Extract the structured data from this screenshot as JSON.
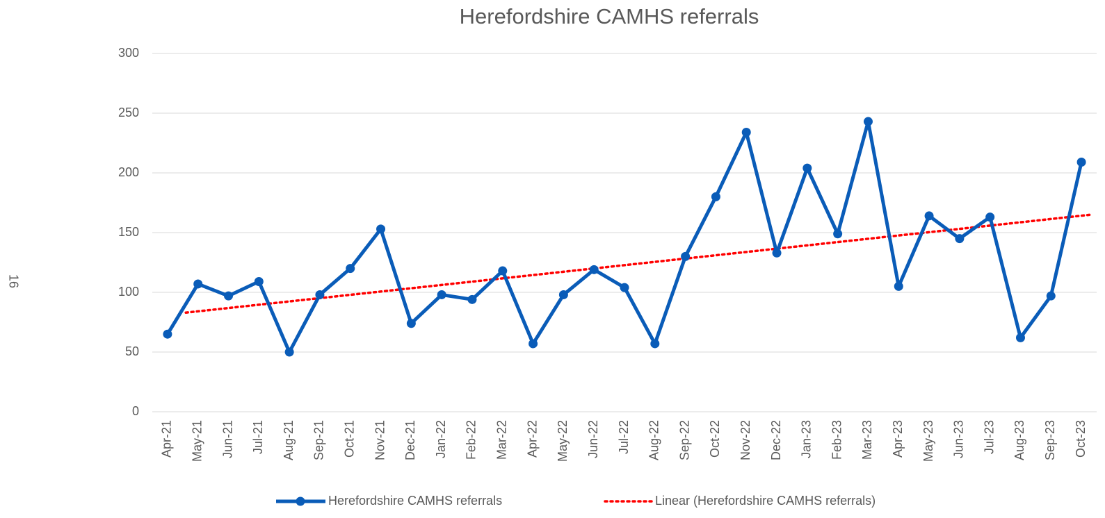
{
  "page_number": "16",
  "chart_data": {
    "type": "line",
    "title": "Herefordshire CAMHS referrals",
    "categories": [
      "Apr-21",
      "May-21",
      "Jun-21",
      "Jul-21",
      "Aug-21",
      "Sep-21",
      "Oct-21",
      "Nov-21",
      "Dec-21",
      "Jan-22",
      "Feb-22",
      "Mar-22",
      "Apr-22",
      "May-22",
      "Jun-22",
      "Jul-22",
      "Aug-22",
      "Sep-22",
      "Oct-22",
      "Nov-22",
      "Dec-22",
      "Jan-23",
      "Feb-23",
      "Mar-23",
      "Apr-23",
      "May-23",
      "Jun-23",
      "Jul-23",
      "Aug-23",
      "Sep-23",
      "Oct-23"
    ],
    "series": [
      {
        "name": "Herefordshire CAMHS referrals",
        "color": "#0a5cb8",
        "values": [
          65,
          107,
          97,
          109,
          50,
          98,
          120,
          153,
          74,
          98,
          94,
          118,
          57,
          98,
          119,
          104,
          57,
          130,
          180,
          234,
          133,
          204,
          149,
          243,
          105,
          164,
          145,
          163,
          62,
          97,
          209
        ]
      }
    ],
    "trendline": {
      "name": "Linear (Herefordshire CAMHS referrals)",
      "color": "#ff0000",
      "values": [
        83,
        165
      ]
    },
    "ylim": [
      0,
      300
    ],
    "yticks": [
      0,
      50,
      100,
      150,
      200,
      250,
      300
    ],
    "grid": true,
    "legend": "bottom"
  }
}
